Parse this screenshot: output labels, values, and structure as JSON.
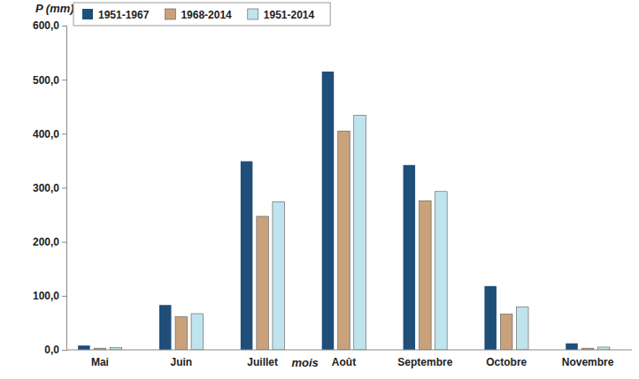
{
  "chart_data": {
    "type": "bar",
    "y_label": "P (mm)",
    "x_label": "mois",
    "categories": [
      "Mai",
      "Juin",
      "Juillet",
      "Août",
      "Septembre",
      "Octobre",
      "Novembre"
    ],
    "series": [
      {
        "name": "1951-1967",
        "color": "#1f4e79",
        "values": [
          8,
          83,
          349,
          515,
          342,
          118,
          12
        ]
      },
      {
        "name": "1968-2014",
        "color": "#c9a27c",
        "values": [
          3,
          61,
          247,
          405,
          276,
          66,
          3
        ]
      },
      {
        "name": "1951-2014",
        "color": "#bfe4ee",
        "values": [
          4,
          67,
          274,
          434,
          293,
          79,
          5
        ]
      }
    ],
    "ylim": [
      0,
      600
    ],
    "yticks": [
      {
        "value": 0,
        "label": "0,0"
      },
      {
        "value": 100,
        "label": "100,0"
      },
      {
        "value": 200,
        "label": "200,0"
      },
      {
        "value": 300,
        "label": "300,0"
      },
      {
        "value": 400,
        "label": "400,0"
      },
      {
        "value": 500,
        "label": "500,0"
      },
      {
        "value": 600,
        "label": "600,0"
      }
    ],
    "grid": false,
    "legend": "top-left"
  }
}
